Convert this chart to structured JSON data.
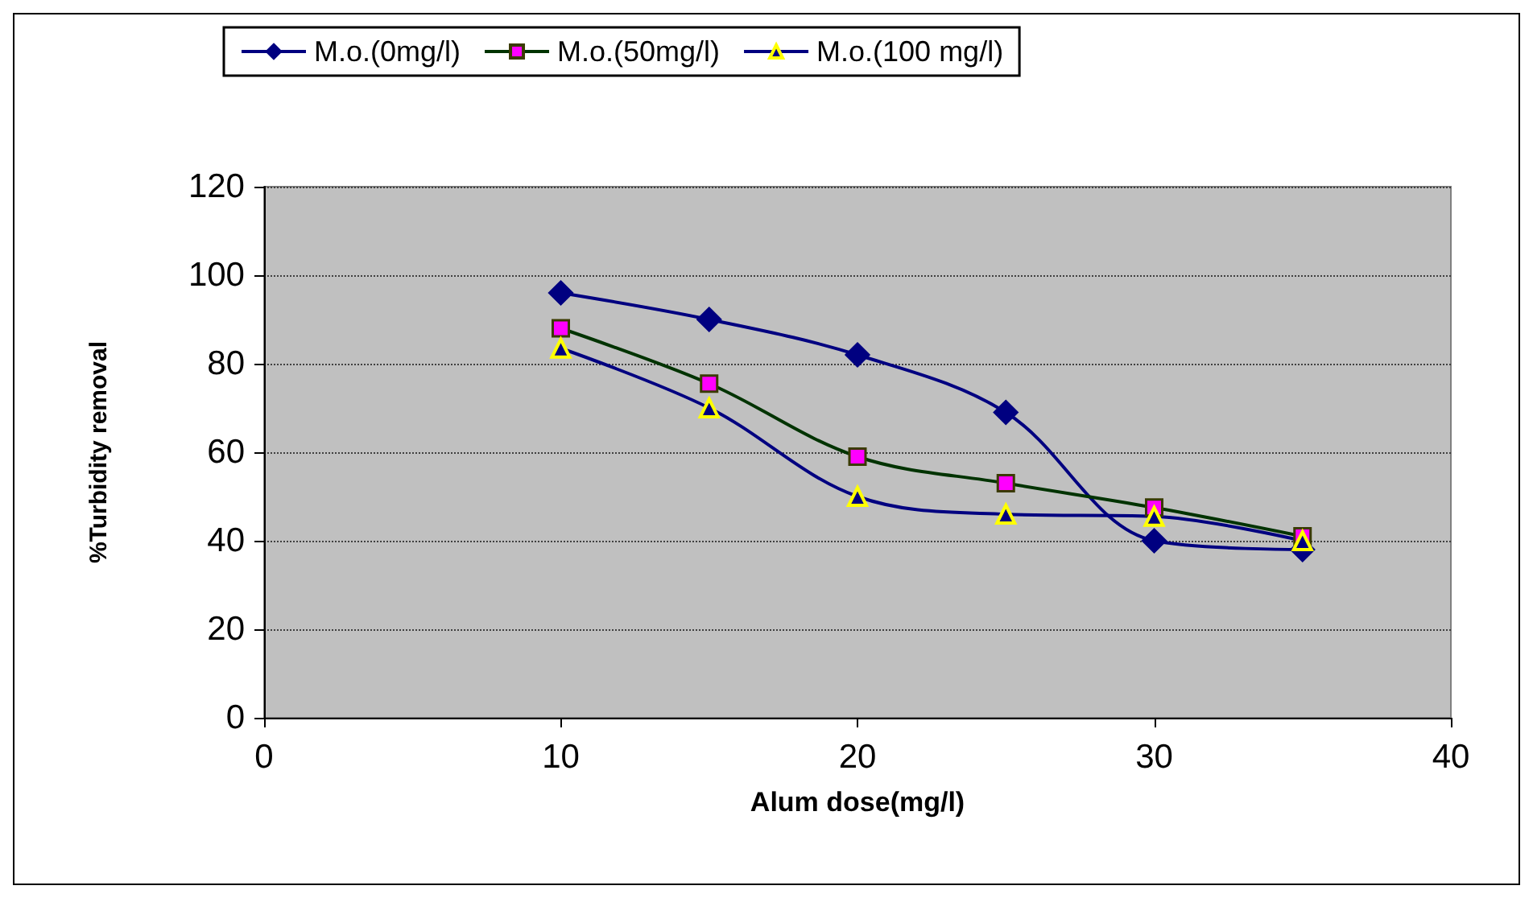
{
  "chart_data": {
    "type": "line",
    "xlabel": "Alum dose(mg/l)",
    "ylabel": "%Turbidity removal",
    "xlim": [
      0,
      40
    ],
    "xticks": [
      0,
      10,
      20,
      30,
      40
    ],
    "ylim": [
      0,
      120
    ],
    "yticks": [
      0,
      20,
      40,
      60,
      80,
      100,
      120
    ],
    "grid": "y",
    "legend": "top",
    "x": [
      10,
      15,
      20,
      25,
      30,
      35
    ],
    "series": [
      {
        "name": "M.o.(0mg/l)",
        "color": "#000080",
        "marker": "diamond",
        "values": [
          96,
          90,
          82,
          69,
          40,
          38
        ]
      },
      {
        "name": "M.o.(50mg/l)",
        "color": "#ff00ff",
        "marker": "square",
        "values": [
          88,
          75.5,
          59,
          53,
          47.5,
          41
        ]
      },
      {
        "name": "M.o.(100 mg/l)",
        "color": "#000080",
        "marker": "triangle",
        "values": [
          83.5,
          70,
          50,
          46,
          45.5,
          40
        ]
      }
    ]
  }
}
